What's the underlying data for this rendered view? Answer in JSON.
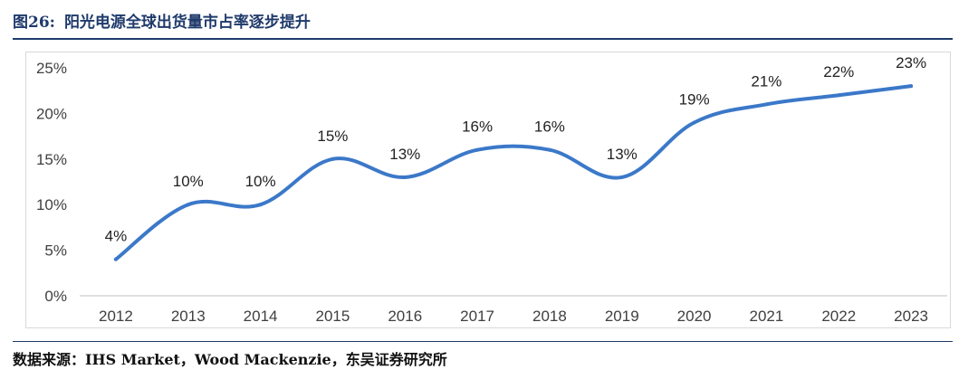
{
  "figure": {
    "number": "图26:",
    "title": "阳光电源全球出货量市占率逐步提升"
  },
  "source": "数据来源：IHS Market，Wood Mackenzie，东吴证券研究所",
  "colors": {
    "line": "#3b78c9",
    "title": "#1f3a6b",
    "axis": "#bfbfbf",
    "text": "#404040"
  },
  "chart_data": {
    "type": "line",
    "title": "",
    "xlabel": "",
    "ylabel": "",
    "categories": [
      "2012",
      "2013",
      "2014",
      "2015",
      "2016",
      "2017",
      "2018",
      "2019",
      "2020",
      "2021",
      "2022",
      "2023"
    ],
    "series": [
      {
        "values": [
          4,
          10,
          10,
          15,
          13,
          16,
          16,
          13,
          19,
          21,
          22,
          23
        ],
        "labels": [
          "4%",
          "10%",
          "10%",
          "15%",
          "13%",
          "16%",
          "16%",
          "13%",
          "19%",
          "21%",
          "22%",
          "23%"
        ]
      }
    ],
    "ylim": [
      0,
      25
    ],
    "yticks": [
      0,
      5,
      10,
      15,
      20,
      25
    ],
    "ytick_labels": [
      "0%",
      "5%",
      "10%",
      "15%",
      "20%",
      "25%"
    ],
    "grid": false,
    "smooth": true
  }
}
